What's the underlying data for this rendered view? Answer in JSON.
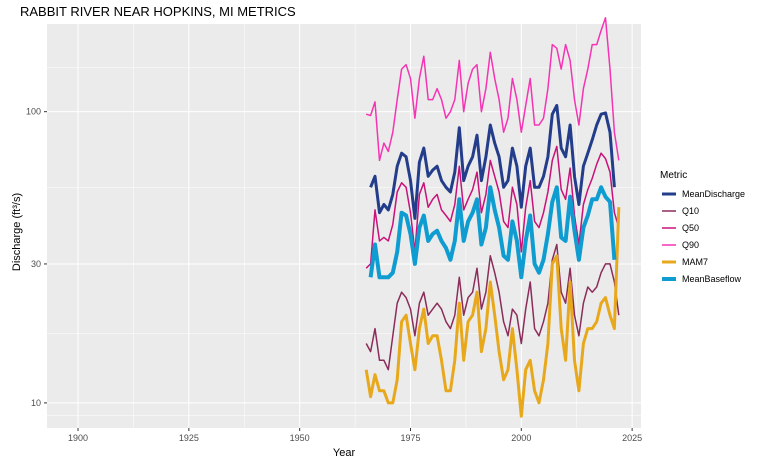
{
  "chart_data": {
    "type": "line",
    "title": "RABBIT RIVER NEAR HOPKINS, MI  METRICS",
    "xlabel": "Year",
    "ylabel": "Discharge (ft³/s)",
    "y_scale": "log10",
    "xlim": [
      1893,
      2027
    ],
    "ylim": [
      8.2,
      200
    ],
    "x_ticks": [
      1900,
      1925,
      1950,
      1975,
      2000,
      2025
    ],
    "y_ticks": [
      10,
      30,
      100
    ],
    "grid": true,
    "legend_title": "Metric",
    "legend_position": "right",
    "x": [
      1965,
      1966,
      1967,
      1968,
      1969,
      1970,
      1971,
      1972,
      1973,
      1974,
      1975,
      1976,
      1977,
      1978,
      1979,
      1980,
      1981,
      1982,
      1983,
      1984,
      1985,
      1986,
      1987,
      1988,
      1989,
      1990,
      1991,
      1992,
      1993,
      1994,
      1995,
      1996,
      1997,
      1998,
      1999,
      2000,
      2001,
      2002,
      2003,
      2004,
      2005,
      2006,
      2007,
      2008,
      2009,
      2010,
      2011,
      2012,
      2013,
      2014,
      2015,
      2016,
      2017,
      2018,
      2019,
      2020,
      2021,
      2022
    ],
    "series": [
      {
        "name": "MeanDischarge",
        "color": "#233d8b",
        "width": 3,
        "values": [
          null,
          55,
          60,
          45,
          48,
          46,
          52,
          65,
          72,
          70,
          58,
          43,
          67,
          75,
          60,
          63,
          65,
          58,
          55,
          53,
          62,
          88,
          58,
          65,
          70,
          83,
          58,
          70,
          90,
          78,
          70,
          55,
          58,
          75,
          65,
          47,
          65,
          75,
          55,
          55,
          60,
          70,
          98,
          105,
          75,
          70,
          90,
          60,
          48,
          65,
          72,
          80,
          90,
          98,
          99,
          85,
          55,
          null
        ]
      },
      {
        "name": "Q10",
        "color": "#8b2c5a",
        "width": 1.5,
        "values": [
          16,
          15,
          18,
          14,
          14,
          13,
          17,
          22,
          24,
          23,
          21,
          17,
          22,
          24,
          20,
          21,
          22,
          21,
          19,
          18,
          20,
          27,
          20,
          23,
          24,
          29,
          21,
          24,
          32,
          28,
          24,
          19,
          17,
          21,
          20,
          16,
          21,
          26,
          18,
          17,
          19,
          22,
          31,
          35,
          24,
          22,
          29,
          20,
          17,
          22,
          25,
          24,
          25,
          28,
          30,
          30,
          26,
          20
        ]
      },
      {
        "name": "Q50",
        "color": "#c8127a",
        "width": 1.5,
        "values": [
          29,
          30,
          46,
          36,
          37,
          36,
          41,
          53,
          57,
          55,
          45,
          33,
          52,
          57,
          47,
          50,
          52,
          46,
          44,
          42,
          48,
          65,
          46,
          50,
          54,
          62,
          45,
          52,
          68,
          60,
          53,
          42,
          40,
          55,
          48,
          33,
          47,
          58,
          42,
          40,
          45,
          53,
          68,
          76,
          54,
          50,
          64,
          44,
          35,
          48,
          54,
          59,
          66,
          72,
          69,
          62,
          45,
          40
        ]
      },
      {
        "name": "Q90",
        "color": "#f534b4",
        "width": 1.5,
        "values": [
          98,
          97,
          108,
          68,
          78,
          73,
          85,
          110,
          140,
          145,
          130,
          95,
          130,
          155,
          110,
          110,
          120,
          110,
          95,
          100,
          110,
          150,
          100,
          125,
          140,
          145,
          100,
          120,
          160,
          130,
          110,
          85,
          95,
          130,
          110,
          85,
          105,
          130,
          90,
          90,
          95,
          120,
          170,
          165,
          140,
          170,
          150,
          110,
          90,
          120,
          140,
          170,
          170,
          190,
          210,
          140,
          85,
          68
        ]
      },
      {
        "name": "MAM7",
        "color": "#e8a81c",
        "width": 3,
        "values": [
          13,
          10.5,
          12.5,
          11,
          11,
          10,
          10,
          12,
          19,
          20,
          16,
          13,
          18,
          21,
          16,
          17,
          17,
          14,
          11,
          11,
          14,
          22,
          14,
          19,
          20,
          24,
          15,
          18,
          26,
          20,
          15,
          12,
          13,
          18,
          13,
          9,
          13,
          14,
          11,
          10,
          12,
          16,
          30,
          32,
          18,
          14,
          26,
          14,
          11,
          16,
          18,
          18,
          19,
          22,
          23,
          20,
          18,
          47
        ]
      },
      {
        "name": "MeanBaseflow",
        "color": "#0e9cd1",
        "width": 4,
        "values": [
          null,
          27,
          35,
          27,
          27,
          27,
          28,
          33,
          45,
          44,
          38,
          30,
          40,
          44,
          36,
          38,
          39,
          36,
          34,
          31,
          36,
          50,
          36,
          42,
          45,
          50,
          35,
          40,
          55,
          46,
          40,
          32,
          31,
          42,
          36,
          27,
          36,
          44,
          30,
          28,
          31,
          38,
          49,
          55,
          37,
          36,
          51,
          39,
          31,
          40,
          44,
          50,
          50,
          55,
          51,
          49,
          31,
          null
        ]
      }
    ]
  }
}
